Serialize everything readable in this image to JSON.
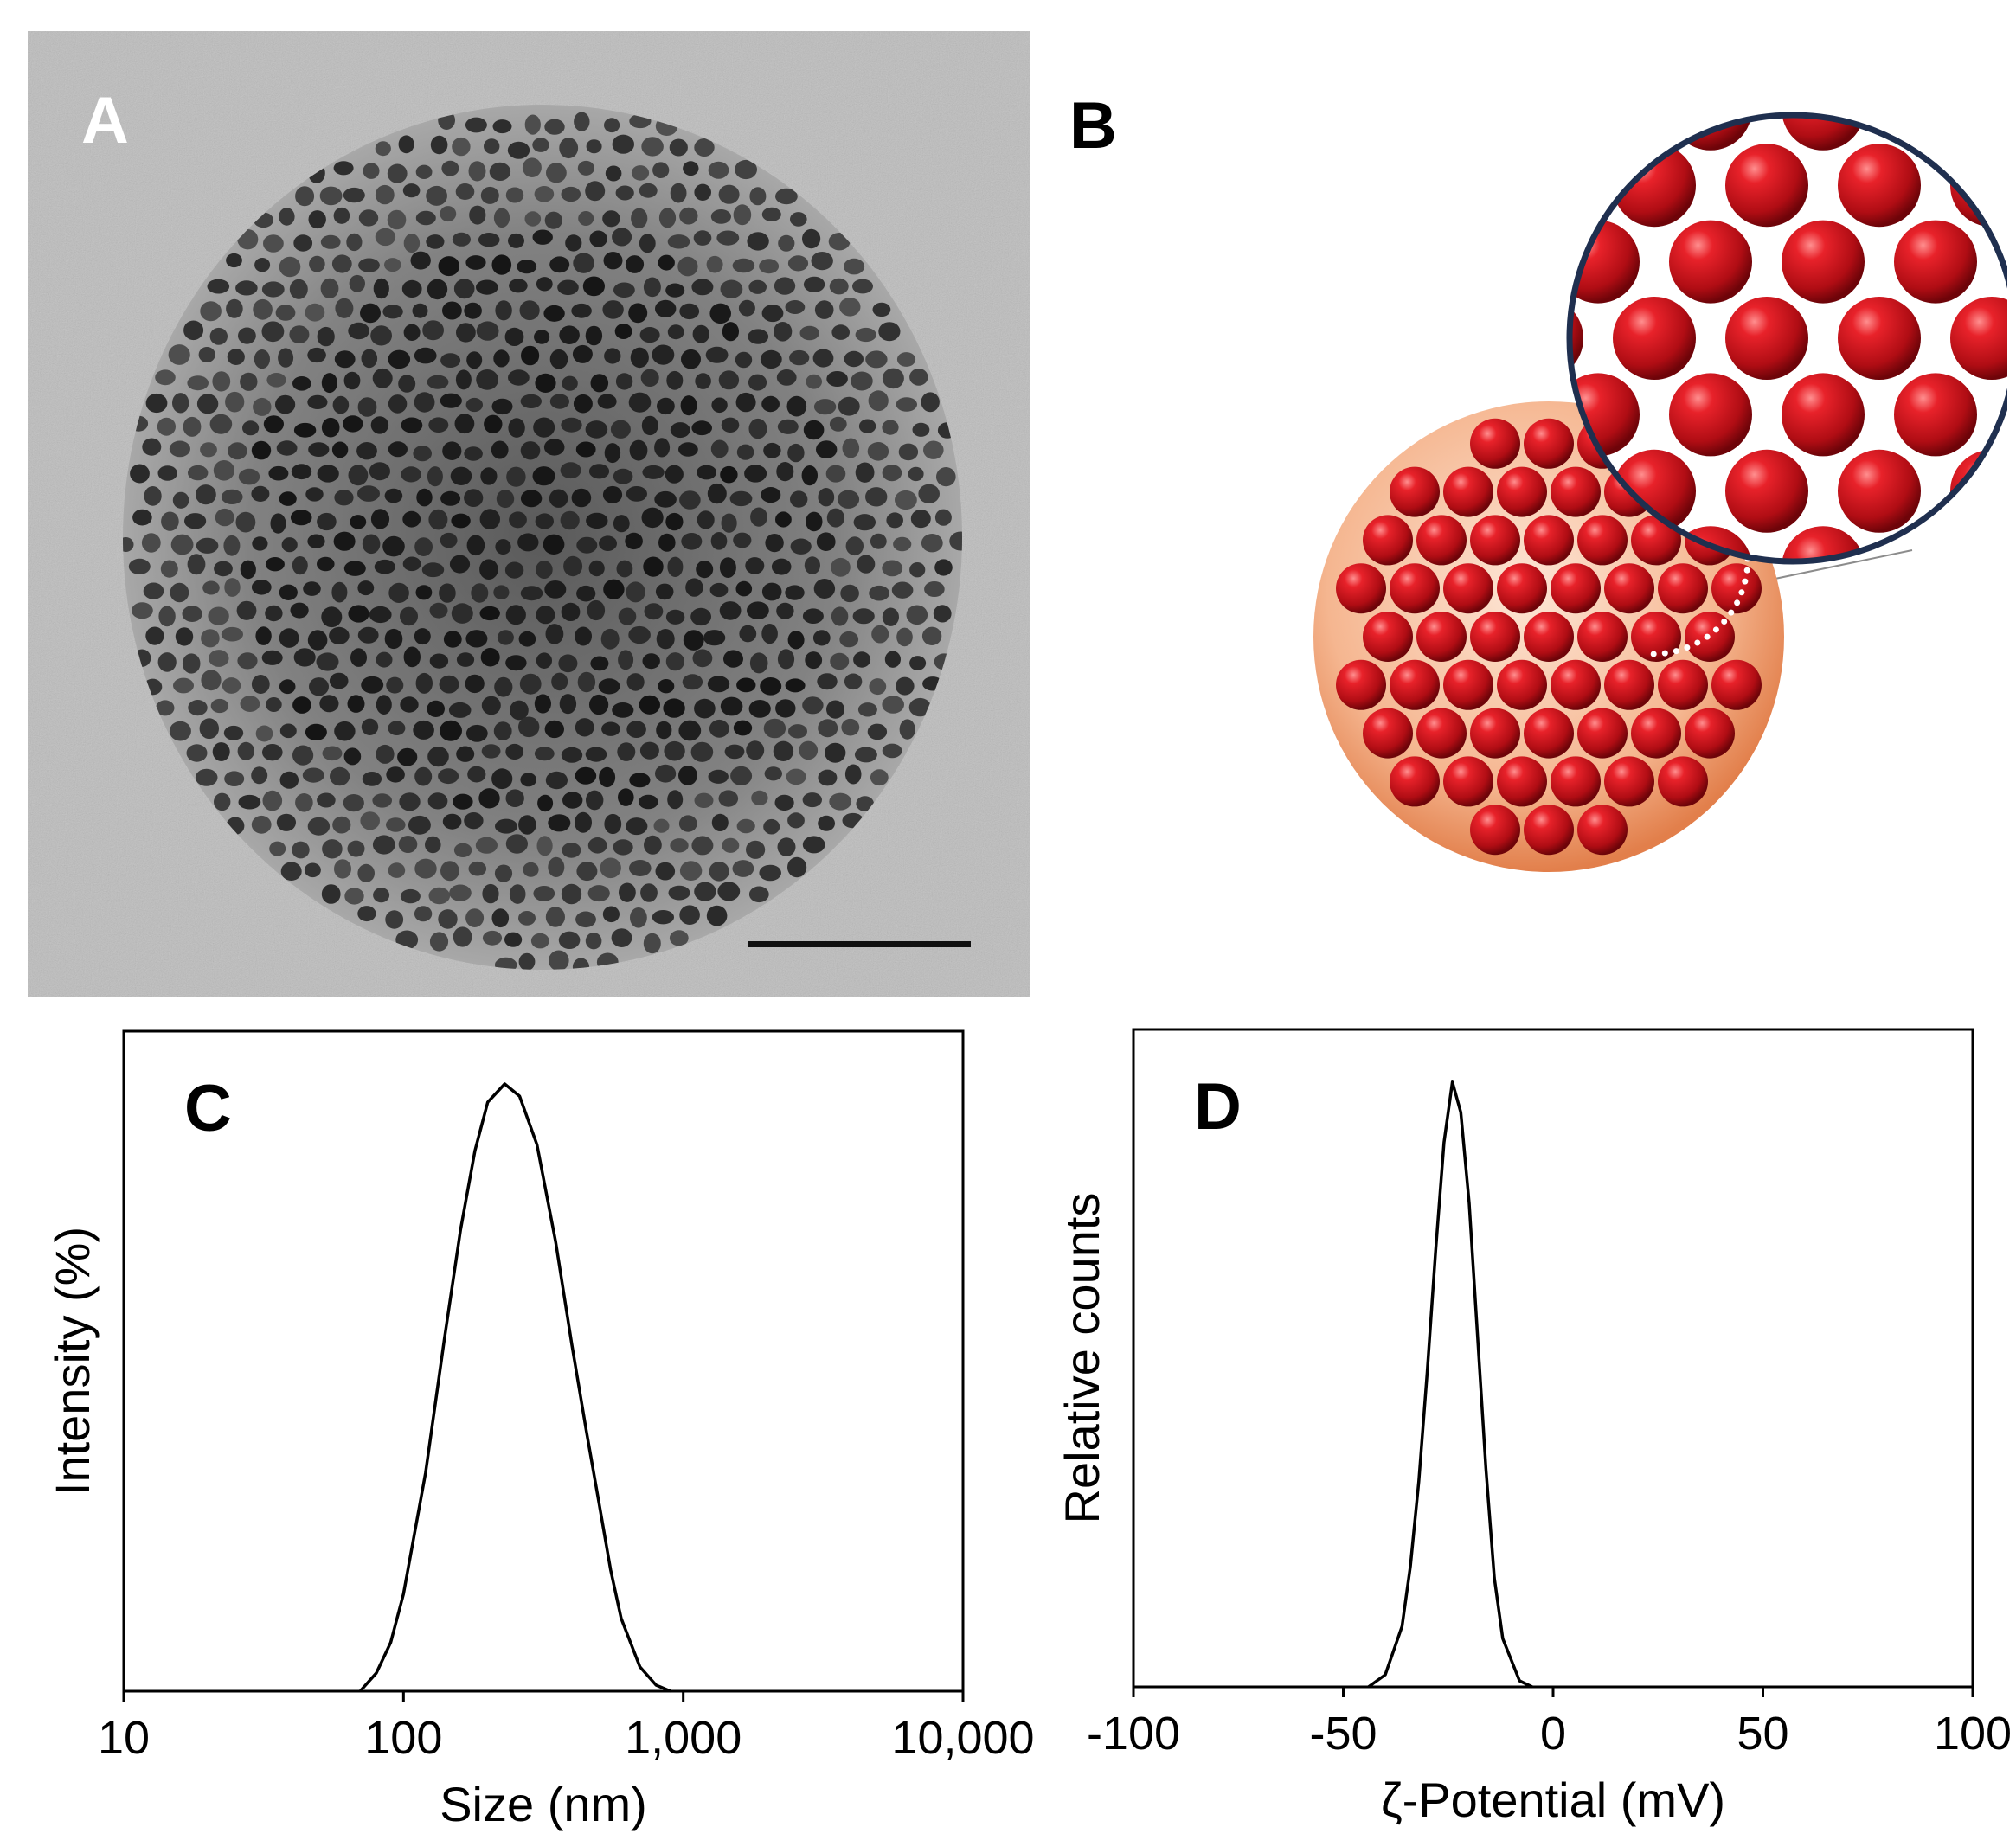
{
  "panels": {
    "a": {
      "letter": "A",
      "image": "cryo-tem-micrograph-particle",
      "scale_bar": "scale-bar"
    },
    "b": {
      "letter": "B",
      "image": "schematic-sphere-with-packed-red-spheres-and-magnified-inset"
    }
  },
  "chart_data": [
    {
      "type": "line",
      "panel_letter": "C",
      "xlabel": "Size (nm)",
      "ylabel": "Intensity (%)",
      "x_scale": "log",
      "xlim": [
        10,
        10000
      ],
      "x_ticks": [
        10,
        100,
        1000,
        10000
      ],
      "x_tick_labels": [
        "10",
        "100",
        "1,000",
        "10,000"
      ],
      "ylim": [
        0,
        1
      ],
      "y_ticks_shown": false,
      "grid": false,
      "legend": "none",
      "x": [
        70,
        80,
        90,
        100,
        120,
        140,
        160,
        180,
        200,
        230,
        260,
        300,
        350,
        400,
        450,
        500,
        550,
        600,
        700,
        800,
        900
      ],
      "y": [
        0.0,
        0.03,
        0.08,
        0.16,
        0.36,
        0.58,
        0.76,
        0.89,
        0.97,
        1.0,
        0.98,
        0.9,
        0.74,
        0.57,
        0.43,
        0.31,
        0.2,
        0.12,
        0.04,
        0.01,
        0.0
      ]
    },
    {
      "type": "line",
      "panel_letter": "D",
      "xlabel": "ζ-Potential (mV)",
      "ylabel": "Relative counts",
      "xlim": [
        -100,
        100
      ],
      "x_ticks": [
        -100,
        -50,
        0,
        50,
        100
      ],
      "x_tick_labels": [
        "-100",
        "-50",
        "0",
        "50",
        "100"
      ],
      "ylim": [
        0,
        1
      ],
      "y_ticks_shown": false,
      "grid": false,
      "legend": "none",
      "x": [
        -44,
        -40,
        -36,
        -34,
        -32,
        -30,
        -28,
        -26,
        -24,
        -22,
        -20,
        -18,
        -16,
        -14,
        -12,
        -8,
        -5
      ],
      "y": [
        0.0,
        0.02,
        0.1,
        0.2,
        0.34,
        0.52,
        0.72,
        0.9,
        1.0,
        0.95,
        0.8,
        0.58,
        0.36,
        0.18,
        0.08,
        0.01,
        0.0
      ]
    }
  ]
}
